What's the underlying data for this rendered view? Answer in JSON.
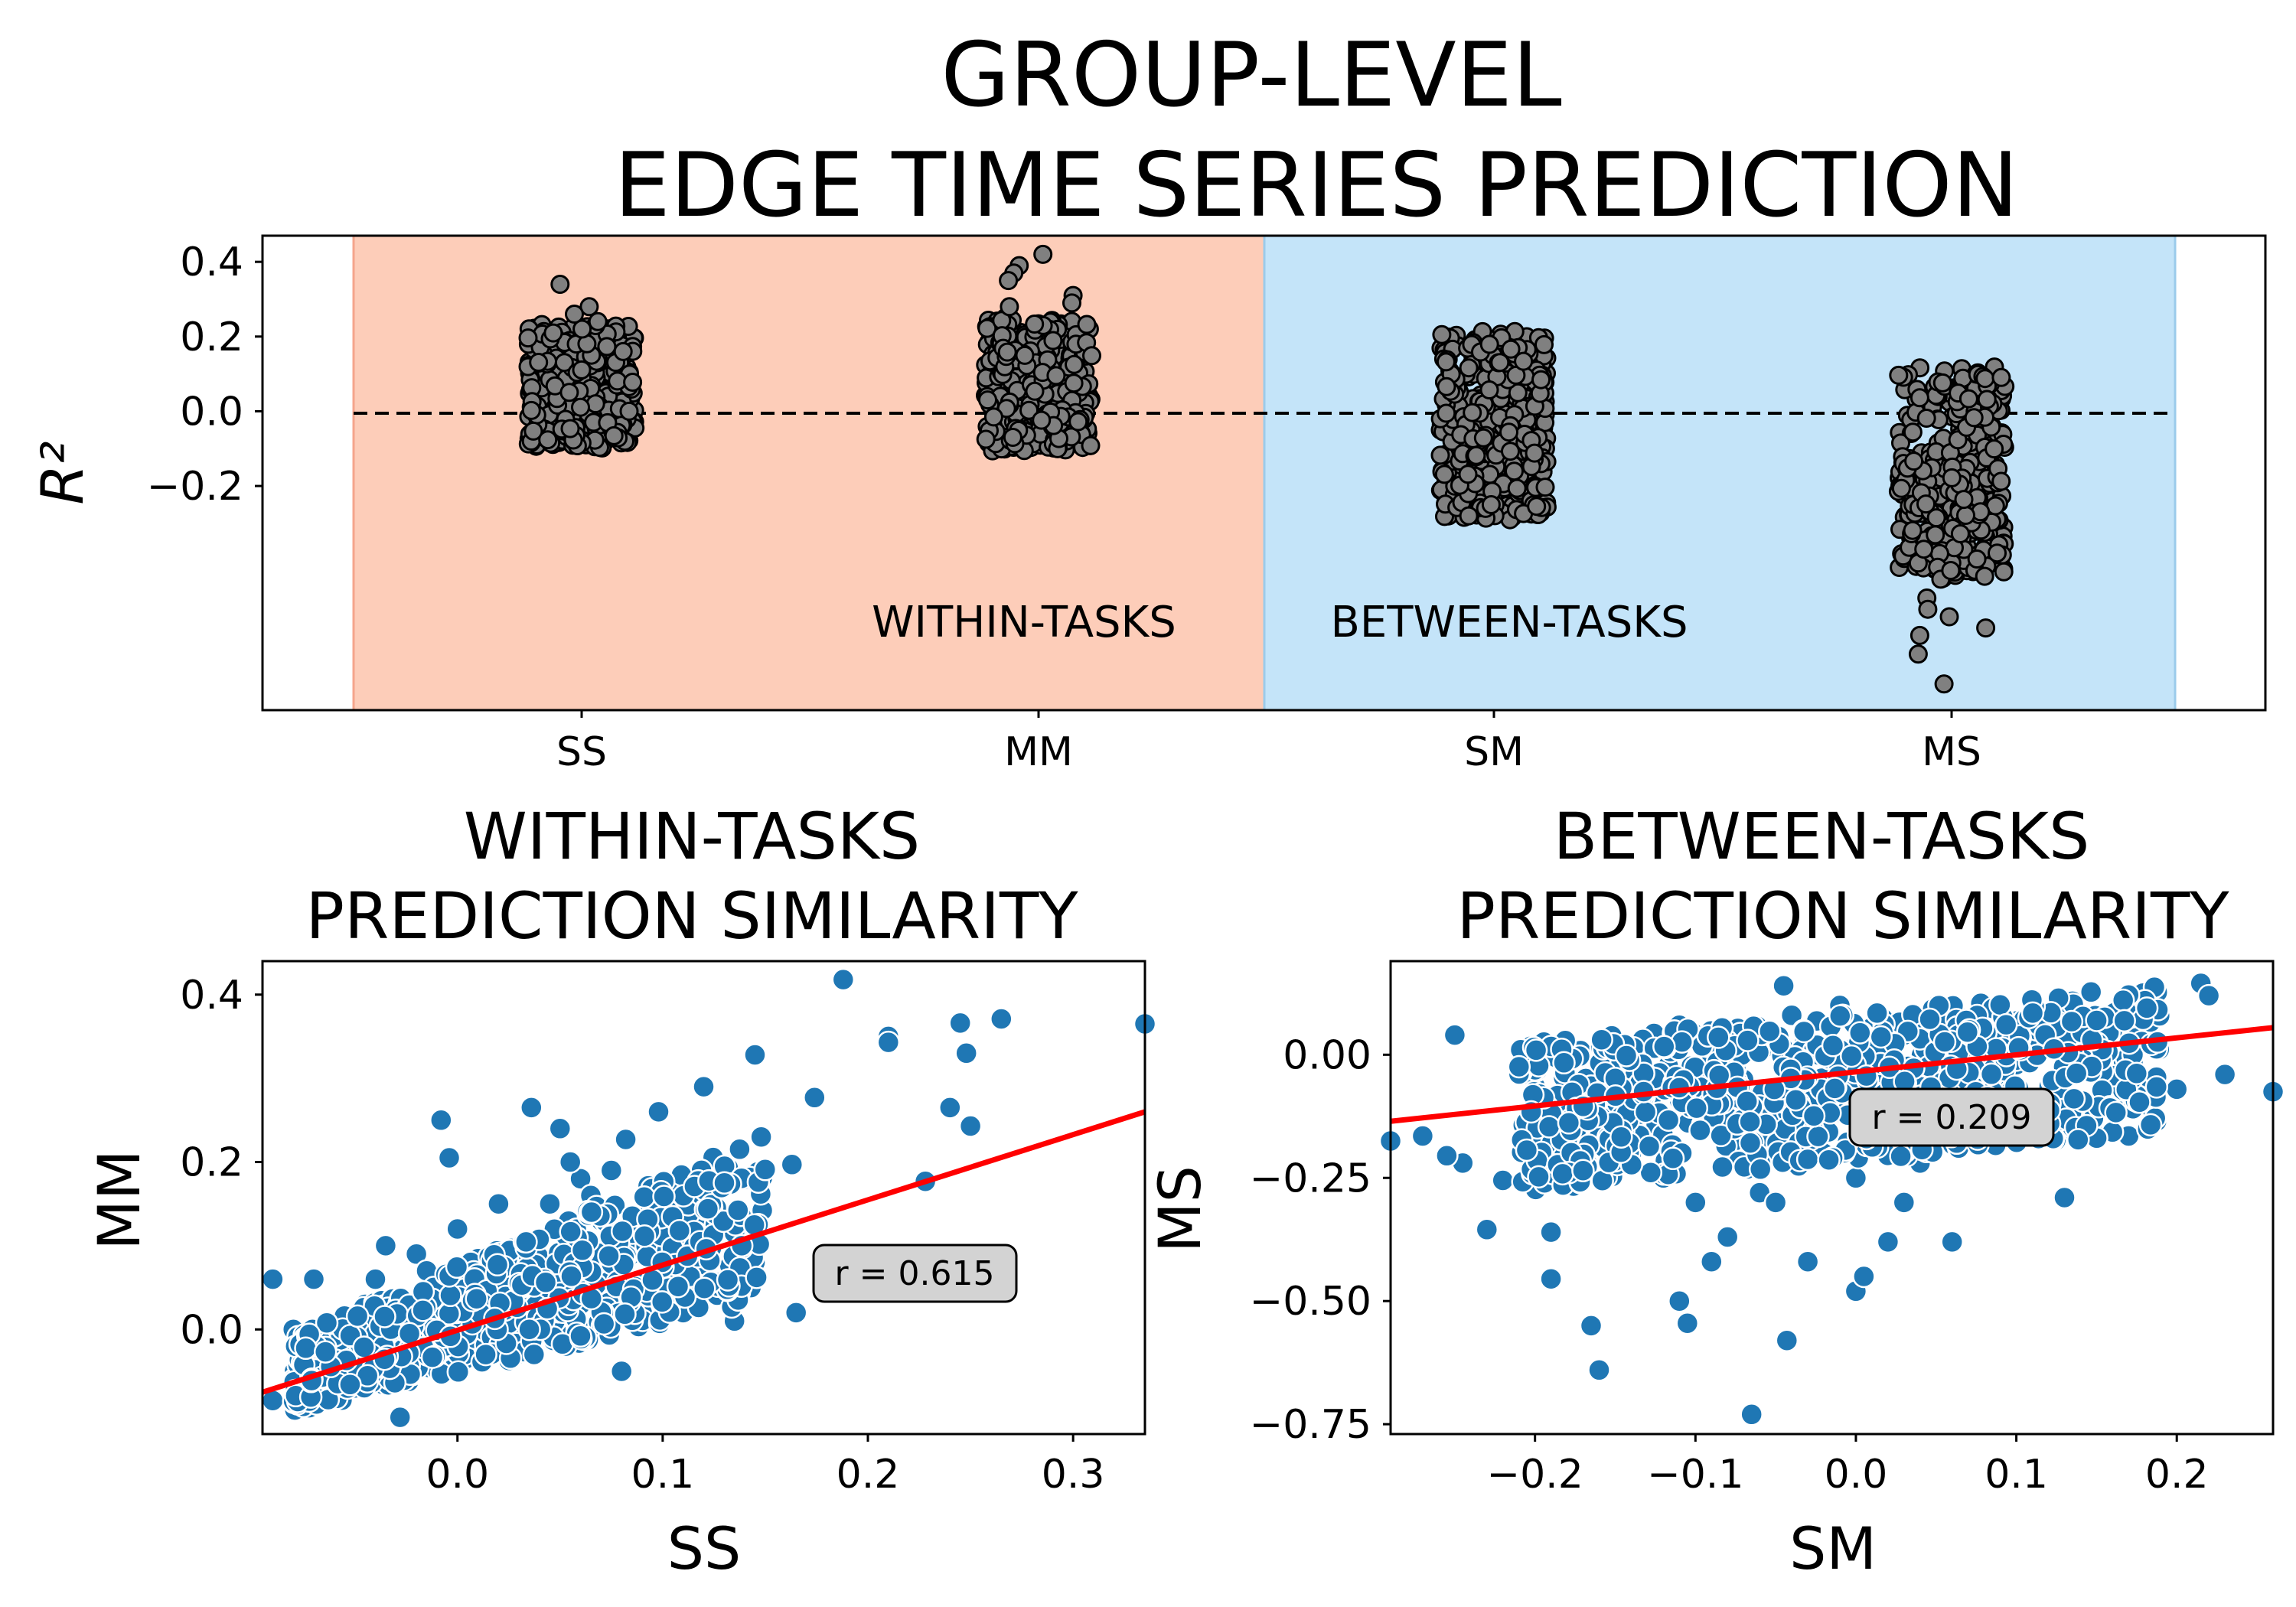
{
  "title_line1": "GROUP-LEVEL",
  "title_line2": "EDGE TIME SERIES PREDICTION",
  "colors": {
    "within_band": "#fdcdb9",
    "between_band": "#c4e4f9",
    "strip_point": "#808080",
    "scatter_point": "#1f77b4",
    "fit_line": "#ff0000",
    "annot_box": "#d3d3d3"
  },
  "chart_data": [
    {
      "type": "scatter",
      "subtype": "strip",
      "ylabel": "R²",
      "categories": [
        "SS",
        "MM",
        "SM",
        "MS"
      ],
      "yticks": [
        "0.4",
        "0.2",
        "0.0",
        "−0.2"
      ],
      "ylim": [
        -0.8,
        0.47
      ],
      "reference_line": 0.0,
      "regions": [
        {
          "label": "WITHIN-TASKS",
          "categories": [
            "SS",
            "MM"
          ]
        },
        {
          "label": "BETWEEN-TASKS",
          "categories": [
            "SM",
            "MS"
          ]
        }
      ],
      "series": [
        {
          "category": "SS",
          "min": -0.1,
          "max": 0.26,
          "outliers": [
            0.34,
            0.28,
            0.26,
            0.24,
            0.22
          ]
        },
        {
          "category": "MM",
          "min": -0.11,
          "max": 0.27,
          "outliers": [
            0.42,
            0.39,
            0.37,
            0.35,
            0.31,
            0.29,
            0.28
          ]
        },
        {
          "category": "SM",
          "min": -0.3,
          "max": 0.26,
          "outliers": [
            -0.28,
            -0.26,
            -0.25
          ]
        },
        {
          "category": "MS",
          "min": -0.45,
          "max": 0.15,
          "outliers": [
            -0.5,
            -0.53,
            -0.55,
            -0.58,
            -0.6,
            -0.65,
            -0.73
          ]
        }
      ]
    },
    {
      "type": "scatter",
      "title_line1": "WITHIN-TASKS",
      "title_line2": "PREDICTION SIMILARITY",
      "xlabel": "SS",
      "ylabel": "MM",
      "xlim": [
        -0.095,
        0.335
      ],
      "ylim": [
        -0.125,
        0.44
      ],
      "xticks": [
        "0.0",
        "0.1",
        "0.2",
        "0.3"
      ],
      "yticks": [
        "0.4",
        "0.2",
        "0.0"
      ],
      "r_label": "r = 0.615",
      "fit": {
        "x": [
          -0.095,
          0.335
        ],
        "y": [
          -0.075,
          0.26
        ]
      },
      "points": [
        [
          0.188,
          0.418
        ],
        [
          0.335,
          0.365
        ],
        [
          0.265,
          0.371
        ],
        [
          0.245,
          0.366
        ],
        [
          0.21,
          0.35
        ],
        [
          0.21,
          0.343
        ],
        [
          0.248,
          0.33
        ],
        [
          0.145,
          0.328
        ],
        [
          0.12,
          0.29
        ],
        [
          0.098,
          0.26
        ],
        [
          0.174,
          0.277
        ],
        [
          0.24,
          0.265
        ],
        [
          0.036,
          0.265
        ],
        [
          -0.008,
          0.25
        ],
        [
          0.05,
          0.24
        ],
        [
          0.25,
          0.243
        ],
        [
          0.148,
          0.23
        ],
        [
          0.082,
          0.227
        ],
        [
          -0.004,
          0.205
        ],
        [
          0.163,
          0.197
        ],
        [
          0.228,
          0.177
        ],
        [
          -0.09,
          0.06
        ],
        [
          -0.07,
          0.06
        ],
        [
          -0.08,
          0.0
        ],
        [
          -0.09,
          -0.085
        ],
        [
          -0.07,
          -0.085
        ],
        [
          -0.028,
          -0.105
        ],
        [
          0.08,
          -0.05
        ],
        [
          0.145,
          0.08
        ],
        [
          0.143,
          0.05
        ],
        [
          0.165,
          0.02
        ],
        [
          0.135,
          0.115
        ],
        [
          0.115,
          0.13
        ],
        [
          0.11,
          0.16
        ],
        [
          0.075,
          0.19
        ],
        [
          0.06,
          0.18
        ],
        [
          0.13,
          0.04
        ],
        [
          0.135,
          0.01
        ],
        [
          0.12,
          0.07
        ],
        [
          0.1,
          0.1
        ],
        [
          0.09,
          0.06
        ],
        [
          0.07,
          0.13
        ],
        [
          0.06,
          0.08
        ],
        [
          0.05,
          0.12
        ],
        [
          0.04,
          0.05
        ],
        [
          0.03,
          0.1
        ],
        [
          0.02,
          0.15
        ],
        [
          0.01,
          0.08
        ],
        [
          0.0,
          0.12
        ],
        [
          -0.01,
          0.04
        ],
        [
          -0.02,
          0.09
        ],
        [
          -0.03,
          0.02
        ],
        [
          -0.04,
          0.06
        ],
        [
          -0.05,
          0.0
        ],
        [
          -0.06,
          -0.03
        ],
        [
          -0.05,
          -0.07
        ],
        [
          -0.04,
          -0.03
        ],
        [
          -0.03,
          -0.06
        ],
        [
          -0.02,
          -0.02
        ],
        [
          -0.01,
          -0.05
        ],
        [
          0.0,
          0.0
        ],
        [
          0.01,
          -0.03
        ],
        [
          0.02,
          0.01
        ],
        [
          0.03,
          -0.02
        ],
        [
          0.04,
          0.02
        ],
        [
          0.05,
          -0.01
        ],
        [
          0.06,
          0.03
        ],
        [
          0.07,
          0.0
        ],
        [
          0.08,
          0.04
        ],
        [
          0.09,
          0.02
        ],
        [
          0.1,
          0.04
        ],
        [
          0.11,
          0.02
        ],
        [
          0.12,
          0.1
        ],
        [
          0.025,
          0.06
        ],
        [
          0.045,
          0.15
        ],
        [
          0.055,
          0.2
        ],
        [
          0.085,
          0.09
        ],
        [
          0.015,
          0.03
        ],
        [
          -0.015,
          0.07
        ],
        [
          -0.035,
          0.1
        ],
        [
          -0.045,
          0.03
        ],
        [
          -0.055,
          -0.045
        ],
        [
          -0.065,
          -0.015
        ],
        [
          0.065,
          0.16
        ],
        [
          0.095,
          0.13
        ],
        [
          0.105,
          0.07
        ]
      ]
    },
    {
      "type": "scatter",
      "title_line1": "BETWEEN-TASKS",
      "title_line2": "PREDICTION SIMILARITY",
      "xlabel": "SM",
      "ylabel": "MS",
      "xlim": [
        -0.29,
        0.26
      ],
      "ylim": [
        -0.77,
        0.19
      ],
      "xticks": [
        "−0.2",
        "−0.1",
        "0.0",
        "0.1",
        "0.2"
      ],
      "yticks": [
        "0.00",
        "−0.25",
        "−0.50",
        "−0.75"
      ],
      "r_label": "r = 0.209",
      "fit": {
        "x": [
          -0.29,
          0.26
        ],
        "y": [
          -0.135,
          0.055
        ]
      },
      "points": [
        [
          -0.065,
          -0.73
        ],
        [
          -0.043,
          -0.58
        ],
        [
          -0.16,
          -0.64
        ],
        [
          -0.165,
          -0.55
        ],
        [
          -0.19,
          -0.455
        ],
        [
          -0.11,
          -0.5
        ],
        [
          -0.105,
          -0.545
        ],
        [
          -0.19,
          -0.36
        ],
        [
          -0.23,
          -0.355
        ],
        [
          -0.22,
          -0.255
        ],
        [
          -0.245,
          -0.22
        ],
        [
          -0.255,
          -0.205
        ],
        [
          -0.27,
          -0.165
        ],
        [
          -0.29,
          -0.175
        ],
        [
          -0.25,
          0.04
        ],
        [
          -0.045,
          0.14
        ],
        [
          0.215,
          0.145
        ],
        [
          0.22,
          0.12
        ],
        [
          0.26,
          -0.075
        ],
        [
          0.2,
          -0.07
        ],
        [
          0.23,
          -0.04
        ],
        [
          0.18,
          -0.06
        ],
        [
          0.14,
          -0.17
        ],
        [
          0.17,
          -0.165
        ],
        [
          0.0,
          -0.48
        ],
        [
          0.005,
          -0.45
        ],
        [
          0.02,
          -0.38
        ],
        [
          0.06,
          -0.38
        ],
        [
          -0.03,
          -0.42
        ],
        [
          -0.09,
          -0.42
        ],
        [
          -0.08,
          -0.37
        ],
        [
          0.13,
          -0.29
        ],
        [
          -0.2,
          -0.12
        ],
        [
          -0.18,
          -0.04
        ],
        [
          -0.15,
          0.0
        ],
        [
          -0.12,
          0.03
        ],
        [
          -0.1,
          -0.1
        ],
        [
          -0.08,
          0.05
        ],
        [
          -0.06,
          -0.15
        ],
        [
          -0.04,
          0.08
        ],
        [
          -0.02,
          -0.2
        ],
        [
          0.0,
          0.02
        ],
        [
          0.02,
          -0.05
        ],
        [
          0.04,
          0.06
        ],
        [
          0.06,
          -0.1
        ],
        [
          0.08,
          0.04
        ],
        [
          0.1,
          -0.02
        ],
        [
          0.12,
          0.07
        ],
        [
          0.14,
          0.0
        ],
        [
          0.16,
          0.05
        ],
        [
          -0.14,
          -0.2
        ],
        [
          -0.12,
          -0.25
        ],
        [
          -0.1,
          -0.3
        ],
        [
          -0.08,
          -0.22
        ],
        [
          -0.06,
          -0.28
        ],
        [
          -0.04,
          -0.18
        ],
        [
          -0.02,
          -0.1
        ],
        [
          0.0,
          -0.25
        ],
        [
          0.02,
          -0.15
        ],
        [
          0.04,
          -0.22
        ],
        [
          0.06,
          -0.08
        ],
        [
          0.08,
          -0.18
        ],
        [
          0.1,
          -0.12
        ],
        [
          -0.16,
          -0.08
        ],
        [
          -0.13,
          -0.14
        ],
        [
          -0.09,
          0.0
        ],
        [
          -0.07,
          -0.05
        ],
        [
          -0.03,
          0.01
        ],
        [
          0.01,
          -0.07
        ],
        [
          0.03,
          0.04
        ],
        [
          0.05,
          -0.03
        ],
        [
          0.07,
          0.0
        ],
        [
          0.09,
          -0.05
        ],
        [
          0.11,
          0.02
        ],
        [
          0.13,
          -0.04
        ],
        [
          0.15,
          0.08
        ],
        [
          -0.11,
          0.06
        ],
        [
          -0.01,
          0.1
        ],
        [
          0.05,
          0.1
        ],
        [
          0.18,
          0.1
        ],
        [
          -0.05,
          -0.3
        ],
        [
          0.03,
          -0.3
        ]
      ]
    }
  ]
}
